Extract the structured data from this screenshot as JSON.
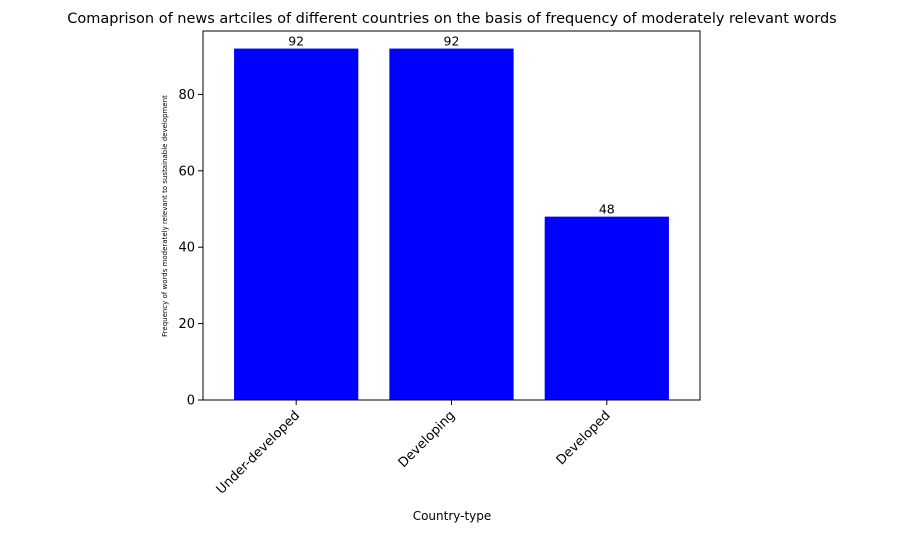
{
  "chart_data": {
    "type": "bar",
    "title": "Comaprison of news artciles of different countries on the basis of frequency of moderately relevant words",
    "xlabel": "Country-type",
    "ylabel": "Frequency of words moderately relevant to sustainable development",
    "categories": [
      "Under-developed",
      "Developing",
      "Developed"
    ],
    "values": [
      92,
      92,
      48
    ],
    "data_labels": [
      "92",
      "92",
      "48"
    ],
    "ylim": [
      0,
      96.6
    ],
    "yticks": [
      0,
      20,
      40,
      60,
      80
    ],
    "ytick_labels": [
      "0",
      "20",
      "40",
      "60",
      "80"
    ],
    "bar_color": "#0000ff",
    "grid": false,
    "x_tick_rotation_deg": 45
  }
}
